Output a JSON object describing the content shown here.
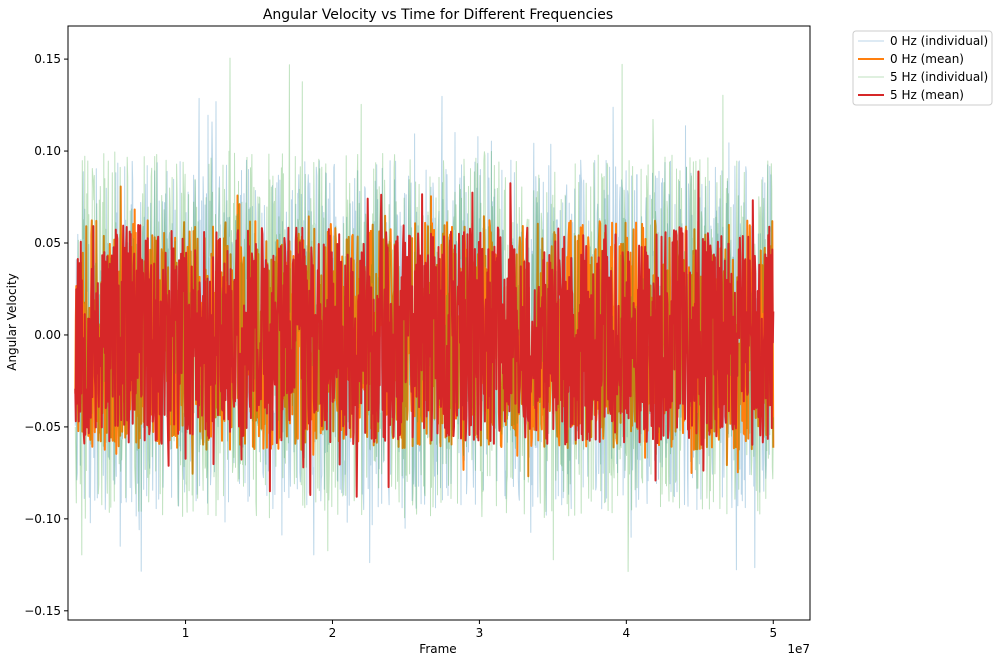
{
  "chart_data": {
    "type": "line",
    "title": "Angular Velocity vs Time for Different Frequencies",
    "xlabel": "Frame",
    "ylabel": "Angular Velocity",
    "x_offset_text": "1e7",
    "xlim": [
      2000000,
      52500000
    ],
    "ylim": [
      -0.155,
      0.168
    ],
    "x_ticks": [
      10000000,
      20000000,
      30000000,
      40000000,
      50000000
    ],
    "x_tick_labels": [
      "1",
      "2",
      "3",
      "4",
      "5"
    ],
    "y_ticks": [
      -0.15,
      -0.1,
      -0.05,
      0.0,
      0.05,
      0.1,
      0.15
    ],
    "y_tick_labels": [
      "−0.15",
      "−0.10",
      "−0.05",
      "0.00",
      "0.05",
      "0.10",
      "0.15"
    ],
    "x_range": [
      2500000,
      50000000
    ],
    "legend_position": "outside-top-right",
    "grid": false,
    "series": [
      {
        "name": "0 Hz (individual)",
        "color": "#1f77b4",
        "opacity": 0.3,
        "linewidth": 1,
        "mean": 0.0,
        "typical_range": [
          -0.095,
          0.095
        ],
        "extremes": [
          -0.13,
          0.13
        ]
      },
      {
        "name": "0 Hz (mean)",
        "color": "#ff7f0e",
        "opacity": 1.0,
        "linewidth": 2,
        "mean": 0.0,
        "typical_range": [
          -0.06,
          0.065
        ],
        "extremes": [
          -0.083,
          0.082
        ]
      },
      {
        "name": "5 Hz (individual)",
        "color": "#2ca02c",
        "opacity": 0.3,
        "linewidth": 1,
        "mean": 0.0,
        "typical_range": [
          -0.1,
          0.1
        ],
        "extremes": [
          -0.14,
          0.155
        ]
      },
      {
        "name": "5 Hz (mean)",
        "color": "#d62728",
        "opacity": 1.0,
        "linewidth": 2,
        "mean": 0.0,
        "typical_range": [
          -0.058,
          0.062
        ],
        "extremes": [
          -0.089,
          0.089
        ]
      }
    ]
  }
}
